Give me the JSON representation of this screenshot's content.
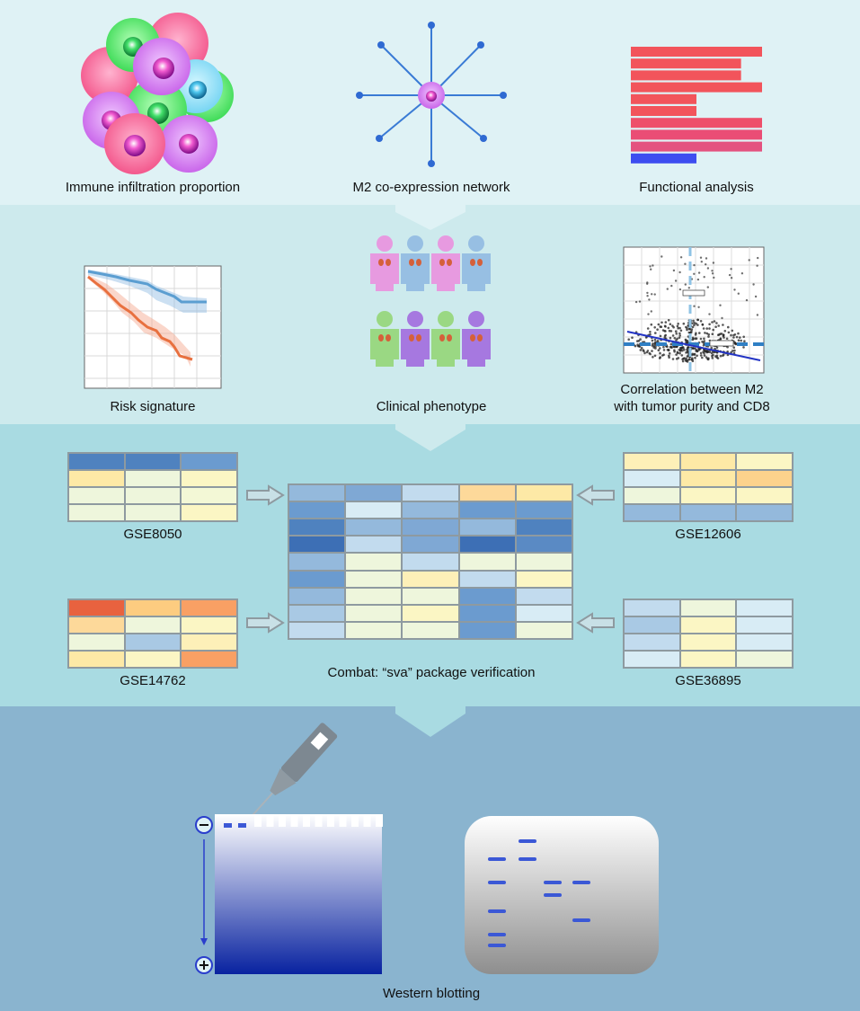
{
  "panel1": {
    "labels": [
      "Immune infiltration proportion",
      "M2 co-expression network",
      "Functional analysis"
    ],
    "functional_bars": [
      {
        "value": 1.0,
        "color": "#f2545b"
      },
      {
        "value": 0.84,
        "color": "#f2545b"
      },
      {
        "value": 0.84,
        "color": "#f2545b"
      },
      {
        "value": 1.0,
        "color": "#f2545b"
      },
      {
        "value": 0.5,
        "color": "#f2545b"
      },
      {
        "value": 0.5,
        "color": "#f2545b"
      },
      {
        "value": 1.0,
        "color": "#ee4f6a"
      },
      {
        "value": 1.0,
        "color": "#ea4d75"
      },
      {
        "value": 1.0,
        "color": "#e4527f"
      },
      {
        "value": 0.5,
        "color": "#3d4df0"
      }
    ]
  },
  "panel2": {
    "labels": [
      "Risk signature",
      "Clinical phenotype",
      "Correlation between M2",
      "with tumor purity and CD8"
    ]
  },
  "panel3": {
    "labels": [
      "GSE8050",
      "GSE12606",
      "GSE14762",
      "GSE36895",
      "Combat: “sva” package verification"
    ],
    "heatmaps": {
      "gse8050": [
        [
          "#4f82bf",
          "#4f82bf",
          "#6b9bcf"
        ],
        [
          "#fde9a6",
          "#eef6dc",
          "#fbf6c4"
        ],
        [
          "#eef6dc",
          "#eef6dc",
          "#f3f8d6"
        ],
        [
          "#eef6dc",
          "#eef6dc",
          "#fbf6c4"
        ]
      ],
      "gse12606": [
        [
          "#fdf0b8",
          "#fde9a6",
          "#fbf6c4"
        ],
        [
          "#d8ecf5",
          "#fde9a6",
          "#fcd28c"
        ],
        [
          "#eef6dc",
          "#fbf6c4",
          "#fbf6c4"
        ],
        [
          "#94b9dc",
          "#94b9dc",
          "#94b9dc"
        ]
      ],
      "gse14762": [
        [
          "#e8623f",
          "#fdcc80",
          "#f9a064"
        ],
        [
          "#fdd99a",
          "#eef6dc",
          "#fbf6c4"
        ],
        [
          "#eef6dc",
          "#a9c9e4",
          "#fdf0b8"
        ],
        [
          "#fde9a6",
          "#fbf6c4",
          "#f9a064"
        ]
      ],
      "gse36895": [
        [
          "#c2dbee",
          "#eef6dc",
          "#d8ecf5"
        ],
        [
          "#a9c9e4",
          "#fbf6c4",
          "#d8ecf5"
        ],
        [
          "#c2dbee",
          "#fbf6c4",
          "#d8ecf5"
        ],
        [
          "#d8ecf5",
          "#fbf6c4",
          "#eef6dc"
        ]
      ],
      "combined": [
        [
          "#94b9dc",
          "#7fa8d4",
          "#c2dbee",
          "#fdd99a",
          "#fde9a6"
        ],
        [
          "#6b9bcf",
          "#d8ecf5",
          "#94b9dc",
          "#6b9bcf",
          "#6b9bcf"
        ],
        [
          "#4f82bf",
          "#94b9dc",
          "#7fa8d4",
          "#94b9dc",
          "#4f82bf"
        ],
        [
          "#3d6fb5",
          "#c2dbee",
          "#7fa8d4",
          "#3d6fb5",
          "#5a8ac4"
        ],
        [
          "#94b9dc",
          "#eef6dc",
          "#c2dbee",
          "#eef6dc",
          "#eef6dc"
        ],
        [
          "#6b9bcf",
          "#eef6dc",
          "#fdf0b8",
          "#c2dbee",
          "#fbf6c4"
        ],
        [
          "#94b9dc",
          "#eef6dc",
          "#eef6dc",
          "#6b9bcf",
          "#c2dbee"
        ],
        [
          "#a9c9e4",
          "#eef6dc",
          "#fbf6c4",
          "#6b9bcf",
          "#d8ecf5"
        ],
        [
          "#c2dbee",
          "#eef6dc",
          "#eef6dc",
          "#6b9bcf",
          "#eef6dc"
        ]
      ]
    }
  },
  "panel4": {
    "label": "Western blotting"
  },
  "colors": {
    "band1": "#dff2f5",
    "band2": "#cdeaed",
    "band3": "#a9dbe2",
    "band4": "#8ab4cf",
    "blue_band": "#3b58d6"
  }
}
